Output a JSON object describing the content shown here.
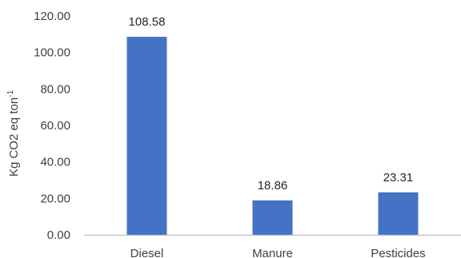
{
  "chart_data": {
    "type": "bar",
    "title": "",
    "xlabel": "",
    "ylabel": "Kg CO2 eq ton",
    "ylabel_superscript": "-1",
    "categories": [
      "Diesel",
      "Manure",
      "Pesticides"
    ],
    "values": [
      108.58,
      18.86,
      23.31
    ],
    "data_labels": [
      "108.58",
      "18.86",
      "23.31"
    ],
    "ylim": [
      0,
      120
    ],
    "yticks": [
      "0.00",
      "20.00",
      "40.00",
      "60.00",
      "80.00",
      "100.00",
      "120.00"
    ],
    "grid": false,
    "legend": "none",
    "bar_color": "#4472c4"
  }
}
